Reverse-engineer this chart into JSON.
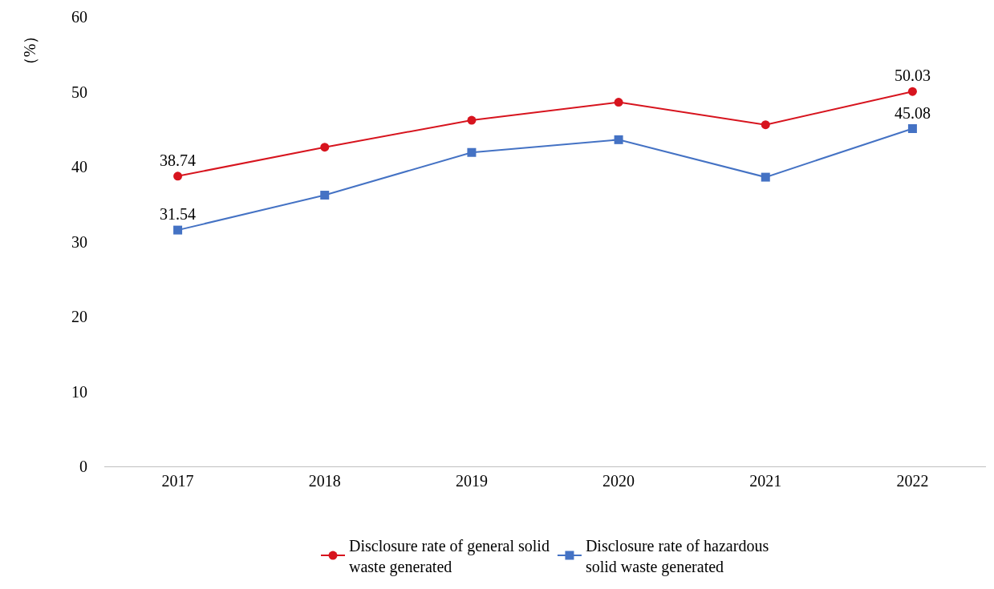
{
  "chart_data": {
    "type": "line",
    "ylabel": "（%）",
    "categories": [
      "2017",
      "2018",
      "2019",
      "2020",
      "2021",
      "2022"
    ],
    "series": [
      {
        "name": "Disclosure rate of general solid\nwaste generated",
        "color": "#d7141e",
        "marker": "circle",
        "values": [
          38.74,
          42.6,
          46.2,
          48.6,
          45.6,
          50.03
        ],
        "value_labels": [
          "38.74",
          null,
          null,
          null,
          null,
          "50.03"
        ]
      },
      {
        "name": "Disclosure rate of hazardous\nsolid waste generated",
        "color": "#4472c4",
        "marker": "square",
        "values": [
          31.54,
          36.2,
          41.9,
          43.6,
          38.6,
          45.08
        ],
        "value_labels": [
          "31.54",
          null,
          null,
          null,
          null,
          "45.08"
        ]
      }
    ],
    "ylim": [
      0,
      60
    ],
    "yticks": [
      0,
      10,
      20,
      30,
      40,
      50,
      60
    ],
    "legend": "bottom"
  }
}
